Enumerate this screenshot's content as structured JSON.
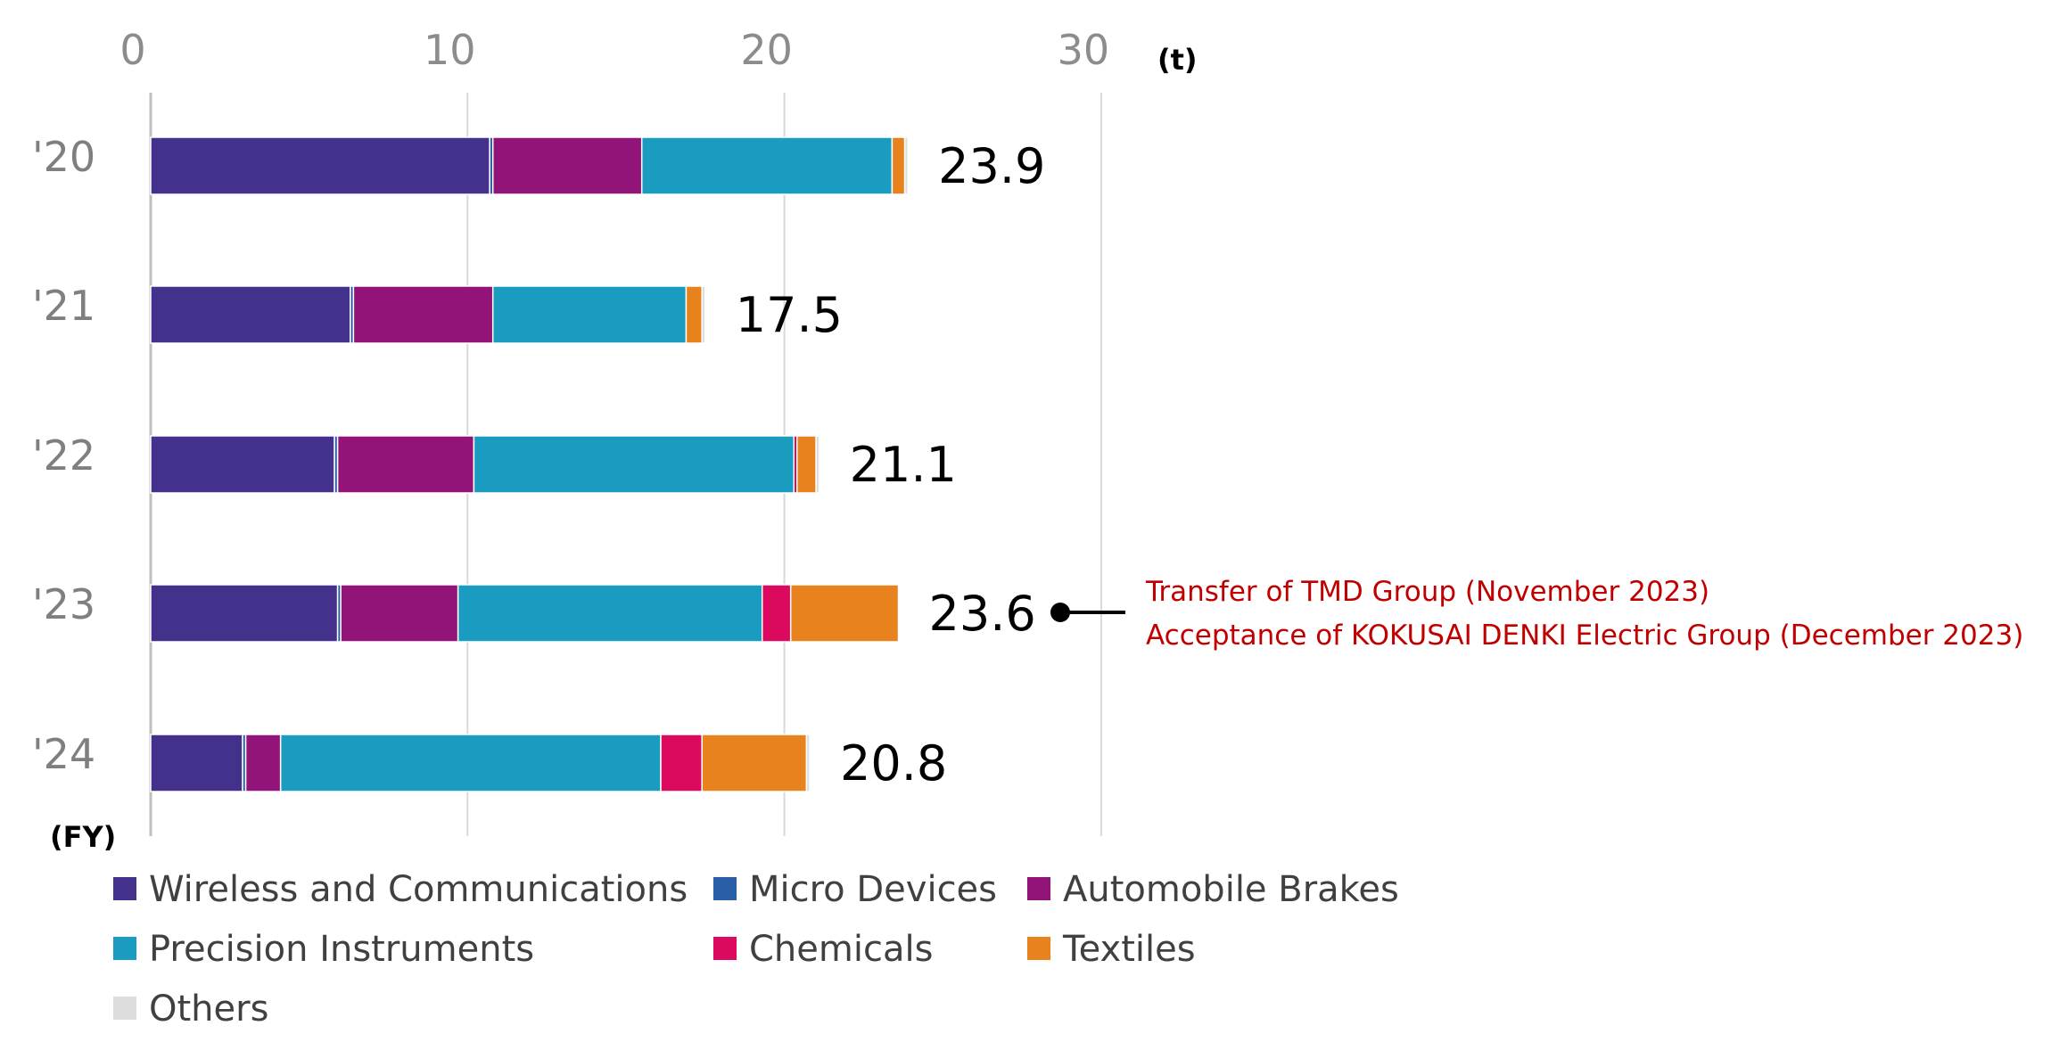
{
  "chart_data": {
    "type": "bar",
    "orientation": "horizontal",
    "stacked": true,
    "title": "",
    "xlabel_unit": "(t)",
    "ylabel_unit": "(FY)",
    "xlim": [
      0,
      30
    ],
    "xticks": [
      0,
      10,
      20,
      30
    ],
    "grid": true,
    "categories": [
      "'20",
      "'21",
      "'22",
      "'23",
      "'24"
    ],
    "series": [
      {
        "name": "Wireless and Communications",
        "color": "#44318b",
        "values": [
          10.7,
          6.3,
          5.8,
          5.9,
          2.9
        ]
      },
      {
        "name": "Micro Devices",
        "color": "#2a5fa8",
        "values": [
          0.1,
          0.1,
          0.1,
          0.1,
          0.1
        ]
      },
      {
        "name": "Automobile Brakes",
        "color": "#921478",
        "values": [
          4.7,
          4.4,
          4.3,
          3.7,
          1.1
        ]
      },
      {
        "name": "Precision Instruments",
        "color": "#1a9cc1",
        "values": [
          7.9,
          6.1,
          10.1,
          9.6,
          12.0
        ]
      },
      {
        "name": "Chemicals",
        "color": "#dc0a5f",
        "values": [
          0.0,
          0.0,
          0.1,
          0.9,
          1.3
        ]
      },
      {
        "name": "Textiles",
        "color": "#e8821c",
        "values": [
          0.4,
          0.5,
          0.6,
          3.4,
          3.3
        ]
      },
      {
        "name": "Others",
        "color": "#dddddd",
        "values": [
          0.1,
          0.1,
          0.1,
          0.0,
          0.1
        ]
      }
    ],
    "totals": [
      "23.9",
      "17.5",
      "21.1",
      "23.6",
      "20.8"
    ],
    "annotation": {
      "category": "'23",
      "lines": [
        "Transfer of TMD Group (November 2023)",
        "Acceptance of KOKUSAI DENKI Electric Group (December 2023)"
      ]
    },
    "legend_position": "bottom"
  }
}
